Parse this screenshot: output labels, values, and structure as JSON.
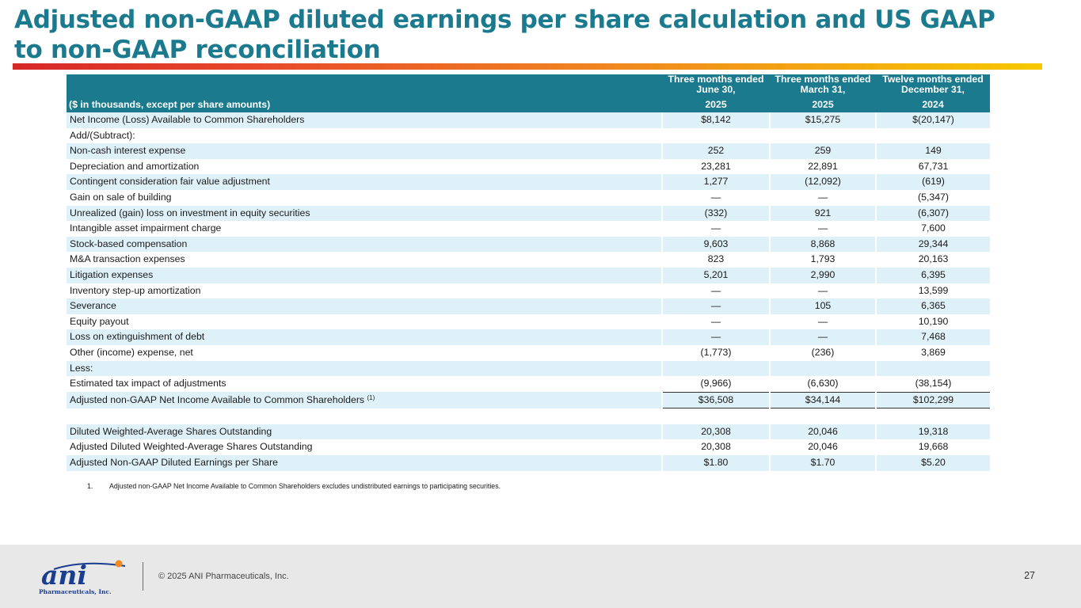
{
  "slide": {
    "title": "Adjusted non-GAAP diluted earnings per share calculation and US GAAP to non-GAAP reconciliation"
  },
  "table": {
    "header_label": "($ in thousands, except per share amounts)",
    "columns": [
      {
        "period": "Three months ended June 30,",
        "year": "2025"
      },
      {
        "period": "Three months ended March 31,",
        "year": "2025"
      },
      {
        "period": "Twelve months ended December 31,",
        "year": "2024"
      }
    ],
    "rows": [
      {
        "label": "Net Income (Loss) Available to Common Shareholders",
        "values": [
          "$8,142",
          "$15,275",
          "$(20,147)"
        ]
      },
      {
        "label": "Add/(Subtract):",
        "values": [
          "",
          "",
          ""
        ]
      },
      {
        "label": "Non-cash interest expense",
        "values": [
          "252",
          "259",
          "149"
        ]
      },
      {
        "label": "Depreciation and amortization",
        "values": [
          "23,281",
          "22,891",
          "67,731"
        ]
      },
      {
        "label": "Contingent consideration fair value adjustment",
        "values": [
          "1,277",
          "(12,092)",
          "(619)"
        ]
      },
      {
        "label": "Gain on sale of building",
        "values": [
          "—",
          "—",
          "(5,347)"
        ]
      },
      {
        "label": "Unrealized (gain) loss on investment in equity securities",
        "values": [
          "(332)",
          "921",
          "(6,307)"
        ]
      },
      {
        "label": "Intangible asset impairment charge",
        "values": [
          "—",
          "—",
          "7,600"
        ]
      },
      {
        "label": "Stock-based compensation",
        "values": [
          "9,603",
          "8,868",
          "29,344"
        ]
      },
      {
        "label": "M&A transaction expenses",
        "values": [
          "823",
          "1,793",
          "20,163"
        ]
      },
      {
        "label": "Litigation expenses",
        "values": [
          "5,201",
          "2,990",
          "6,395"
        ]
      },
      {
        "label": "Inventory step-up amortization",
        "values": [
          "—",
          "—",
          "13,599"
        ]
      },
      {
        "label": "Severance",
        "values": [
          "—",
          "105",
          "6,365"
        ]
      },
      {
        "label": "Equity payout",
        "values": [
          "—",
          "—",
          "10,190"
        ]
      },
      {
        "label": "Loss on extinguishment of debt",
        "values": [
          "—",
          "—",
          "7,468"
        ]
      },
      {
        "label": "Other (income) expense, net",
        "values": [
          "(1,773)",
          "(236)",
          "3,869"
        ]
      },
      {
        "label": "Less:",
        "values": [
          "",
          "",
          ""
        ]
      },
      {
        "label": "Estimated tax impact of adjustments",
        "values": [
          "(9,966)",
          "(6,630)",
          "(38,154)"
        ]
      },
      {
        "label": "Adjusted non-GAAP Net Income Available to Common Shareholders",
        "sup": "(1)",
        "values": [
          "$36,508",
          "$34,144",
          "$102,299"
        ]
      },
      {
        "label": "Diluted Weighted-Average Shares Outstanding",
        "values": [
          "20,308",
          "20,046",
          "19,318"
        ]
      },
      {
        "label": "Adjusted Diluted Weighted-Average Shares Outstanding",
        "values": [
          "20,308",
          "20,046",
          "19,668"
        ]
      },
      {
        "label": "Adjusted Non-GAAP Diluted Earnings per Share",
        "values": [
          "$1.80",
          "$1.70",
          "$5.20"
        ]
      }
    ]
  },
  "footnote": {
    "number": "1.",
    "text": "Adjusted non-GAAP Net Income Available to Common Shareholders excludes undistributed earnings to participating securities."
  },
  "footer": {
    "logo_text": "ani",
    "logo_subtext": "Pharmaceuticals, Inc.",
    "copyright": "© 2025 ANI Pharmaceuticals, Inc.",
    "page_number": "27"
  },
  "colors": {
    "title": "#1b7a8e",
    "header_bg": "#1b7a8e",
    "row_shade": "#dff1f8",
    "logo_blue": "#1a3d8f",
    "logo_orange": "#f08a1e"
  }
}
